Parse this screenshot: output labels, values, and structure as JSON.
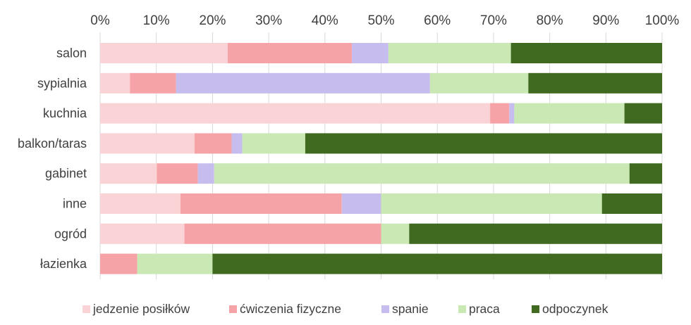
{
  "chart_data": {
    "type": "bar",
    "orientation": "horizontal",
    "stacked": true,
    "percent": true,
    "xlim": [
      0,
      100
    ],
    "x_ticks": [
      "0%",
      "10%",
      "20%",
      "30%",
      "40%",
      "50%",
      "60%",
      "70%",
      "80%",
      "90%",
      "100%"
    ],
    "x_axis_position": "top",
    "grid": true,
    "legend_position": "bottom",
    "categories": [
      "salon",
      "sypialnia",
      "kuchnia",
      "balkon/taras",
      "gabinet",
      "inne",
      "ogród",
      "łazienka"
    ],
    "series": [
      {
        "name": "jedzenie posiłków",
        "color": "#f9d3d5",
        "values": [
          22.7,
          5.3,
          69.4,
          16.8,
          10.1,
          14.3,
          15.0,
          0
        ]
      },
      {
        "name": "ćwiczenia fizyczne",
        "color": "#f5a3a6",
        "values": [
          22.1,
          8.2,
          3.4,
          6.6,
          7.3,
          28.7,
          35.0,
          6.6
        ]
      },
      {
        "name": "spanie",
        "color": "#c6bdee",
        "values": [
          6.5,
          45.2,
          0.9,
          1.9,
          2.9,
          7.0,
          0,
          0
        ]
      },
      {
        "name": "praca",
        "color": "#c9e8b3",
        "values": [
          21.8,
          17.5,
          19.6,
          11.2,
          73.9,
          39.3,
          5.0,
          13.4
        ]
      },
      {
        "name": "odpoczynek",
        "color": "#3f6a1f",
        "values": [
          26.9,
          23.8,
          6.7,
          63.5,
          5.8,
          10.7,
          45.0,
          80.0
        ]
      }
    ]
  }
}
